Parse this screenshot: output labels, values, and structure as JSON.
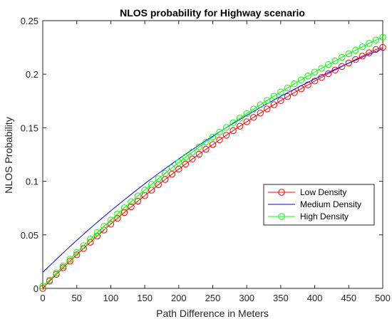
{
  "chart_data": {
    "type": "line",
    "title": "NLOS probability for Highway scenario",
    "xlabel": "Path Difference in Meters",
    "ylabel": "NLOS Probability",
    "xlim": [
      0,
      500
    ],
    "ylim": [
      0,
      0.25
    ],
    "xticks": [
      0,
      50,
      100,
      150,
      200,
      250,
      300,
      350,
      400,
      450,
      500
    ],
    "yticks": [
      0,
      0.05,
      0.1,
      0.15,
      0.2,
      0.25
    ],
    "ytick_labels": [
      "0",
      "0.05",
      "0.1",
      "0.15",
      "0.2",
      "0.25"
    ],
    "grid": false,
    "legend_position": "lower-right",
    "series": [
      {
        "name": "Low Density",
        "color": "#ff0000",
        "marker": "circle",
        "x": [
          0,
          10,
          20,
          30,
          40,
          50,
          60,
          70,
          80,
          90,
          100,
          110,
          120,
          130,
          140,
          150,
          160,
          170,
          180,
          190,
          200,
          210,
          220,
          230,
          240,
          250,
          260,
          270,
          280,
          290,
          300,
          310,
          320,
          330,
          340,
          350,
          360,
          370,
          380,
          390,
          400,
          410,
          420,
          430,
          440,
          450,
          460,
          470,
          480,
          490,
          500
        ],
        "y": [
          0.0,
          0.0068,
          0.0131,
          0.0193,
          0.0254,
          0.0314,
          0.0373,
          0.0431,
          0.0488,
          0.0545,
          0.06,
          0.0655,
          0.0709,
          0.0762,
          0.0815,
          0.0866,
          0.0917,
          0.0968,
          0.1017,
          0.1066,
          0.1114,
          0.1161,
          0.1208,
          0.1254,
          0.1299,
          0.1343,
          0.1387,
          0.143,
          0.1473,
          0.1515,
          0.1556,
          0.1597,
          0.1637,
          0.1676,
          0.1715,
          0.1753,
          0.1791,
          0.1828,
          0.1864,
          0.19,
          0.1936,
          0.197,
          0.2005,
          0.2039,
          0.2072,
          0.2105,
          0.2137,
          0.2169,
          0.22,
          0.2231,
          0.225
        ]
      },
      {
        "name": "Medium Density",
        "color": "#0000ff",
        "marker": "none",
        "x": [
          0,
          10,
          20,
          30,
          40,
          50,
          60,
          70,
          80,
          90,
          100,
          110,
          120,
          130,
          140,
          150,
          160,
          170,
          180,
          190,
          200,
          210,
          220,
          230,
          240,
          250,
          260,
          270,
          280,
          290,
          300,
          310,
          320,
          330,
          340,
          350,
          360,
          370,
          380,
          390,
          400,
          410,
          420,
          430,
          440,
          450,
          460,
          470,
          480,
          490,
          500
        ],
        "y": [
          0.015,
          0.0211,
          0.0272,
          0.0332,
          0.0391,
          0.0449,
          0.0506,
          0.0562,
          0.0617,
          0.0671,
          0.0724,
          0.0776,
          0.0828,
          0.0878,
          0.0928,
          0.0977,
          0.1025,
          0.1072,
          0.1118,
          0.1164,
          0.1209,
          0.1253,
          0.1296,
          0.1339,
          0.1381,
          0.1421,
          0.1462,
          0.1501,
          0.154,
          0.1578,
          0.1616,
          0.1652,
          0.1689,
          0.1724,
          0.1759,
          0.1793,
          0.1827,
          0.186,
          0.1892,
          0.1924,
          0.1955,
          0.1986,
          0.2016,
          0.2046,
          0.2075,
          0.2103,
          0.2131,
          0.2159,
          0.2186,
          0.2212,
          0.2238
        ]
      },
      {
        "name": "High Density",
        "color": "#00ff00",
        "marker": "circle",
        "x": [
          0,
          10,
          20,
          30,
          40,
          50,
          60,
          70,
          80,
          90,
          100,
          110,
          120,
          130,
          140,
          150,
          160,
          170,
          180,
          190,
          200,
          210,
          220,
          230,
          240,
          250,
          260,
          270,
          280,
          290,
          300,
          310,
          320,
          330,
          340,
          350,
          360,
          370,
          380,
          390,
          400,
          410,
          420,
          430,
          440,
          450,
          460,
          470,
          480,
          490,
          500
        ],
        "y": [
          0.002,
          0.0078,
          0.0144,
          0.0209,
          0.0273,
          0.0336,
          0.0399,
          0.046,
          0.052,
          0.058,
          0.0639,
          0.0696,
          0.0753,
          0.0809,
          0.0864,
          0.0918,
          0.0971,
          0.1024,
          0.1075,
          0.1126,
          0.1176,
          0.1225,
          0.1273,
          0.1321,
          0.1367,
          0.1413,
          0.1459,
          0.1503,
          0.1547,
          0.159,
          0.1632,
          0.1674,
          0.1715,
          0.1755,
          0.1795,
          0.1834,
          0.1872,
          0.191,
          0.1947,
          0.1984,
          0.202,
          0.2055,
          0.209,
          0.2124,
          0.2158,
          0.2191,
          0.2224,
          0.2256,
          0.2288,
          0.2319,
          0.2345
        ]
      }
    ]
  }
}
